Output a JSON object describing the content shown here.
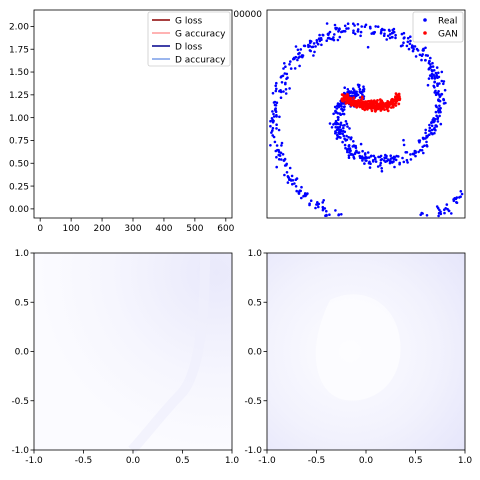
{
  "chart_data": [
    {
      "type": "line",
      "id": "losses",
      "xlim": [
        -20,
        620
      ],
      "ylim": [
        -0.1,
        2.18
      ],
      "x_ticks": [
        "0",
        "100",
        "200",
        "300",
        "400",
        "500",
        "600"
      ],
      "y_ticks": [
        "0.00",
        "0.25",
        "0.50",
        "0.75",
        "1.00",
        "1.25",
        "1.50",
        "1.75",
        "2.00"
      ],
      "grid": false,
      "legend_position": "top-right",
      "series": [
        {
          "name": "G loss",
          "color": "#8b0000",
          "values": []
        },
        {
          "name": "G accuracy",
          "color": "#ff9a9a",
          "values": []
        },
        {
          "name": "D loss",
          "color": "#00008b",
          "values": []
        },
        {
          "name": "D accuracy",
          "color": "#7a9ee8",
          "values": []
        }
      ]
    },
    {
      "type": "scatter",
      "id": "samples",
      "partial_tick_text": "00000",
      "legend_position": "top-right",
      "grid": false,
      "series": [
        {
          "name": "Real",
          "color": "#0000ff",
          "shape": "archimedean-spiral"
        },
        {
          "name": "GAN",
          "color": "#ff0000",
          "shape": "short-arc-near-center"
        }
      ]
    },
    {
      "type": "heatmap",
      "id": "decision-left",
      "xlim": [
        -1.0,
        1.0
      ],
      "ylim": [
        -1.0,
        1.0
      ],
      "x_ticks": [
        "-1.0",
        "-0.5",
        "0.0",
        "0.5",
        "1.0"
      ],
      "y_ticks": [
        "-1.0",
        "-0.5",
        "0.0",
        "0.5",
        "1.0"
      ],
      "colormap_color": "#e8e8fb"
    },
    {
      "type": "heatmap",
      "id": "decision-right",
      "xlim": [
        -1.0,
        1.0
      ],
      "ylim": [
        -1.0,
        1.0
      ],
      "x_ticks": [
        "-1.0",
        "-0.5",
        "0.0",
        "0.5",
        "1.0"
      ],
      "y_ticks": [
        "-1.0",
        "-0.5",
        "0.0",
        "0.5",
        "1.0"
      ],
      "colormap_color": "#e6e6fa"
    }
  ]
}
